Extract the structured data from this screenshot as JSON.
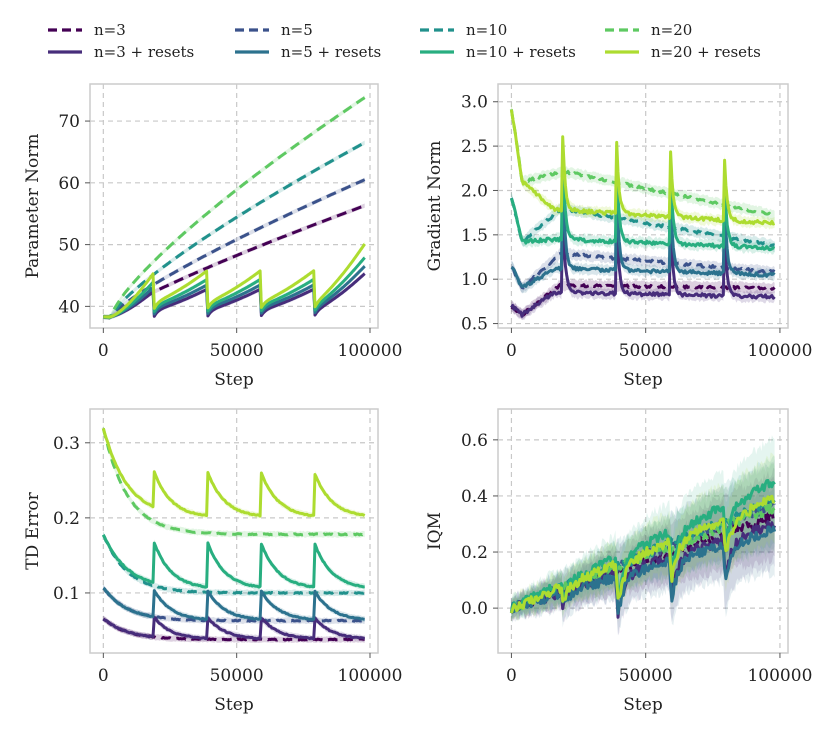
{
  "legend": [
    {
      "label": "n=3",
      "color": "#440154",
      "style": "dashed"
    },
    {
      "label": "n=5",
      "color": "#3b528b",
      "style": "dashed"
    },
    {
      "label": "n=10",
      "color": "#21918c",
      "style": "dashed"
    },
    {
      "label": "n=20",
      "color": "#5ec962",
      "style": "dashed"
    },
    {
      "label": "n=3 + resets",
      "color": "#472d7b",
      "style": "solid"
    },
    {
      "label": "n=5 + resets",
      "color": "#2c728e",
      "style": "solid"
    },
    {
      "label": "n=10 + resets",
      "color": "#28ae80",
      "style": "solid"
    },
    {
      "label": "n=20 + resets",
      "color": "#addc30",
      "style": "solid"
    }
  ],
  "chart_data": [
    {
      "type": "line",
      "title": "",
      "xlabel": "Step",
      "ylabel": "Parameter Norm",
      "xlim": [
        -5000,
        103000
      ],
      "ylim": [
        36.5,
        76
      ],
      "xticks": [
        0,
        50000,
        100000
      ],
      "xtick_labels": [
        "0",
        "50000",
        "100000"
      ],
      "yticks": [
        40,
        50,
        60,
        70
      ],
      "ytick_labels": [
        "40",
        "50",
        "60",
        "70"
      ],
      "grid": true,
      "resets_at": [
        19000,
        39000,
        59000,
        79000
      ],
      "series": [
        {
          "name": "n=3",
          "kind": "plain",
          "start": 38.3,
          "end": 56.3,
          "power": 0.85
        },
        {
          "name": "n=5",
          "kind": "plain",
          "start": 38.3,
          "end": 60.5,
          "power": 0.82
        },
        {
          "name": "n=10",
          "kind": "plain",
          "start": 38.3,
          "end": 66.5,
          "power": 0.8
        },
        {
          "name": "n=20",
          "kind": "plain",
          "start": 38.3,
          "end": 73.8,
          "power": 0.78
        },
        {
          "name": "n=3 + resets",
          "kind": "reset",
          "start": 38.3,
          "peak": 42.5,
          "post": 39.2,
          "end": 45.0
        },
        {
          "name": "n=5 + resets",
          "kind": "reset",
          "start": 38.3,
          "peak": 43.2,
          "post": 39.6,
          "end": 46.2
        },
        {
          "name": "n=10 + resets",
          "kind": "reset",
          "start": 38.3,
          "peak": 44.1,
          "post": 40.0,
          "end": 47.6
        },
        {
          "name": "n=20 + resets",
          "kind": "reset",
          "start": 38.3,
          "peak": 45.5,
          "post": 40.5,
          "end": 49.8
        }
      ]
    },
    {
      "type": "line",
      "title": "",
      "xlabel": "Step",
      "ylabel": "Gradient Norm",
      "xlim": [
        -5000,
        103000
      ],
      "ylim": [
        0.45,
        3.2
      ],
      "xticks": [
        0,
        50000,
        100000
      ],
      "xtick_labels": [
        "0",
        "50000",
        "100000"
      ],
      "yticks": [
        0.5,
        1.0,
        1.5,
        2.0,
        2.5,
        3.0
      ],
      "ytick_labels": [
        "0.5",
        "1.0",
        "1.5",
        "2.0",
        "2.5",
        "3.0"
      ],
      "grid": true,
      "resets_at": [
        19000,
        39000,
        59000,
        79000
      ],
      "series": [
        {
          "name": "n=3",
          "kind": "plain",
          "start": 0.7,
          "dip": 0.6,
          "mid": 0.93,
          "end": 0.9
        },
        {
          "name": "n=5",
          "kind": "plain",
          "start": 1.15,
          "dip": 0.9,
          "mid": 1.28,
          "end": 1.08
        },
        {
          "name": "n=10",
          "kind": "plain",
          "start": 1.93,
          "dip": 1.42,
          "mid": 1.78,
          "end": 1.38
        },
        {
          "name": "n=20",
          "kind": "plain",
          "start": 2.93,
          "dip": 2.1,
          "mid": 2.2,
          "end": 1.72
        },
        {
          "name": "n=3 + resets",
          "kind": "reset",
          "start": 0.7,
          "dip": 0.6,
          "spike": 1.9,
          "level": 0.85,
          "end": 0.8
        },
        {
          "name": "n=5 + resets",
          "kind": "reset",
          "start": 1.15,
          "dip": 0.9,
          "spike": 2.25,
          "level": 1.12,
          "end": 1.05
        },
        {
          "name": "n=10 + resets",
          "kind": "reset",
          "start": 1.93,
          "dip": 1.42,
          "spike": 2.5,
          "level": 1.45,
          "end": 1.35
        },
        {
          "name": "n=20 + resets",
          "kind": "reset",
          "start": 2.93,
          "dip": 2.1,
          "spike": 2.72,
          "level": 1.78,
          "end": 1.63
        }
      ]
    },
    {
      "type": "line",
      "title": "",
      "xlabel": "Step",
      "ylabel": "TD Error",
      "xlim": [
        -5000,
        103000
      ],
      "ylim": [
        0.02,
        0.345
      ],
      "xticks": [
        0,
        50000,
        100000
      ],
      "xtick_labels": [
        "0",
        "50000",
        "100000"
      ],
      "yticks": [
        0.1,
        0.2,
        0.3
      ],
      "ytick_labels": [
        "0.1",
        "0.2",
        "0.3"
      ],
      "grid": true,
      "resets_at": [
        19000,
        39000,
        59000,
        79000
      ],
      "series": [
        {
          "name": "n=3",
          "kind": "plain",
          "start": 0.066,
          "floor": 0.038
        },
        {
          "name": "n=5",
          "kind": "plain",
          "start": 0.107,
          "floor": 0.063
        },
        {
          "name": "n=10",
          "kind": "plain",
          "start": 0.178,
          "floor": 0.1
        },
        {
          "name": "n=20",
          "kind": "plain",
          "start": 0.32,
          "floor": 0.178
        },
        {
          "name": "n=3 + resets",
          "kind": "reset",
          "start": 0.066,
          "floor": 0.038,
          "spike": 0.068
        },
        {
          "name": "n=5 + resets",
          "kind": "reset",
          "start": 0.107,
          "floor": 0.063,
          "spike": 0.104
        },
        {
          "name": "n=10 + resets",
          "kind": "reset",
          "start": 0.178,
          "floor": 0.105,
          "spike": 0.168
        },
        {
          "name": "n=20 + resets",
          "kind": "reset",
          "start": 0.32,
          "floor": 0.2,
          "spike": 0.262
        }
      ]
    },
    {
      "type": "line",
      "title": "",
      "xlabel": "Step",
      "ylabel": "IQM",
      "xlim": [
        -5000,
        103000
      ],
      "ylim": [
        -0.16,
        0.71
      ],
      "xticks": [
        0,
        50000,
        100000
      ],
      "xtick_labels": [
        "0",
        "50000",
        "100000"
      ],
      "yticks": [
        0.0,
        0.2,
        0.4,
        0.6
      ],
      "ytick_labels": [
        "0.0",
        "0.2",
        "0.4",
        "0.6"
      ],
      "grid": true,
      "resets_at": [
        19000,
        39000,
        59000,
        79000
      ],
      "series": [
        {
          "name": "n=3",
          "kind": "plain",
          "end": 0.33
        },
        {
          "name": "n=5",
          "kind": "plain",
          "end": 0.37
        },
        {
          "name": "n=10",
          "kind": "plain",
          "end": 0.38
        },
        {
          "name": "n=20",
          "kind": "plain",
          "end": 0.36
        },
        {
          "name": "n=3 + resets",
          "kind": "reset",
          "end": 0.3
        },
        {
          "name": "n=5 + resets",
          "kind": "reset",
          "end": 0.28
        },
        {
          "name": "n=10 + resets",
          "kind": "reset",
          "end": 0.45
        },
        {
          "name": "n=20 + resets",
          "kind": "reset",
          "end": 0.39
        }
      ]
    }
  ]
}
